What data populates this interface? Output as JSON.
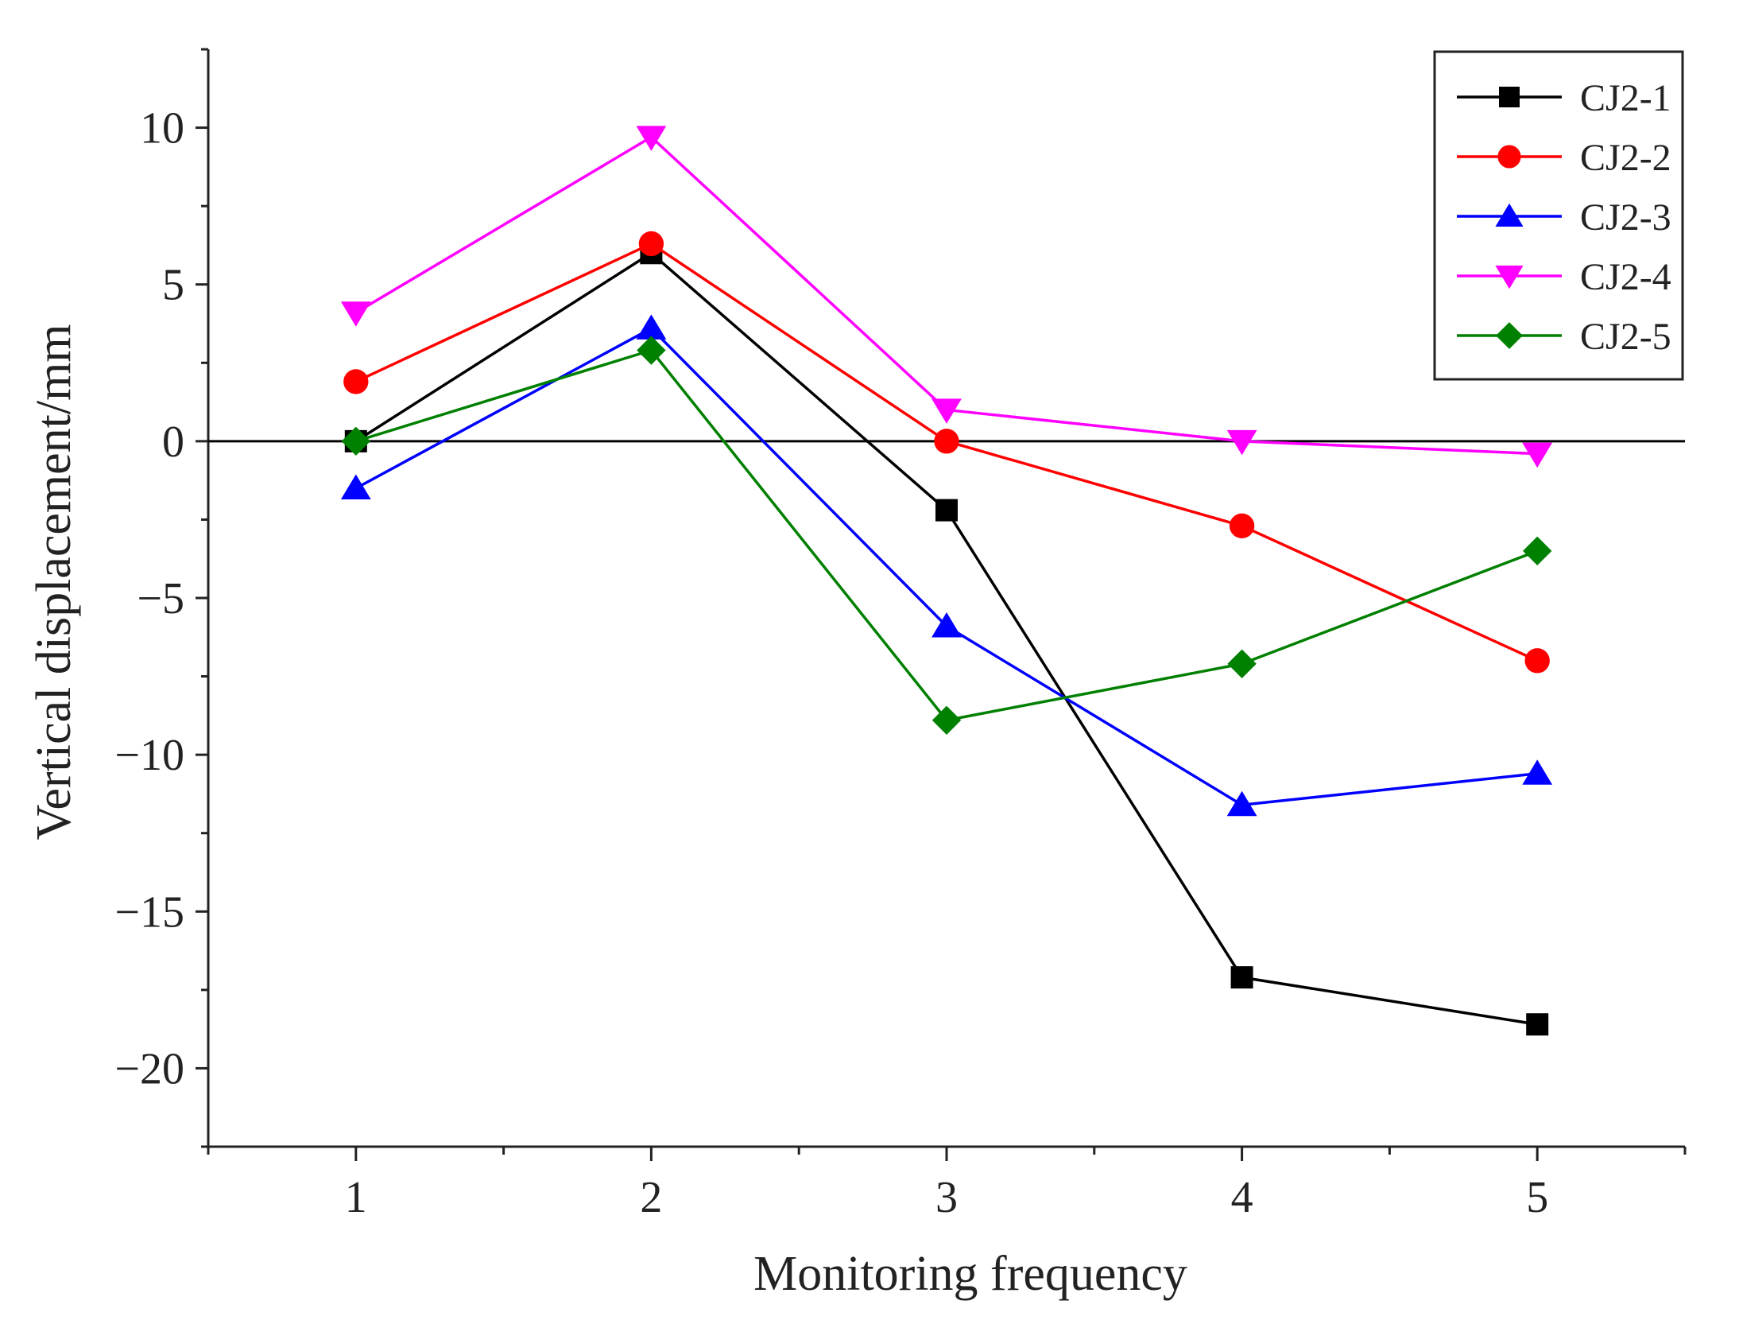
{
  "chart_data": {
    "type": "line",
    "title": "",
    "xlabel": "Monitoring frequency",
    "ylabel": "Vertical displacement/mm",
    "x": [
      1,
      2,
      3,
      4,
      5
    ],
    "xlim": [
      0.5,
      5.5
    ],
    "ylim": [
      -22.5,
      12.5
    ],
    "xticks": [
      1,
      2,
      3,
      4,
      5
    ],
    "xtick_labels": [
      "1",
      "2",
      "3",
      "4",
      "5"
    ],
    "yticks": [
      10,
      5,
      0,
      -5,
      -10,
      -15,
      -20
    ],
    "ytick_labels": [
      "10",
      "5",
      "0",
      "−5",
      "−10",
      "−15",
      "−20"
    ],
    "zero_line": 0,
    "grid": false,
    "legend_position": "top-right",
    "series": [
      {
        "name": "CJ2-1",
        "color": "#000000",
        "marker": "square",
        "values": [
          0,
          6.0,
          -2.2,
          -17.1,
          -18.6
        ]
      },
      {
        "name": "CJ2-2",
        "color": "#ff0000",
        "marker": "circle",
        "values": [
          1.9,
          6.3,
          0,
          -2.7,
          -7.0
        ]
      },
      {
        "name": "CJ2-3",
        "color": "#0000ff",
        "marker": "triangle-up",
        "values": [
          -1.5,
          3.6,
          -5.9,
          -11.6,
          -10.6
        ]
      },
      {
        "name": "CJ2-4",
        "color": "#ff00ff",
        "marker": "triangle-down",
        "values": [
          4.1,
          9.7,
          1.0,
          0,
          -0.4
        ]
      },
      {
        "name": "CJ2-5",
        "color": "#008000",
        "marker": "diamond",
        "values": [
          0,
          2.9,
          -8.9,
          -7.1,
          -3.5
        ]
      }
    ]
  }
}
